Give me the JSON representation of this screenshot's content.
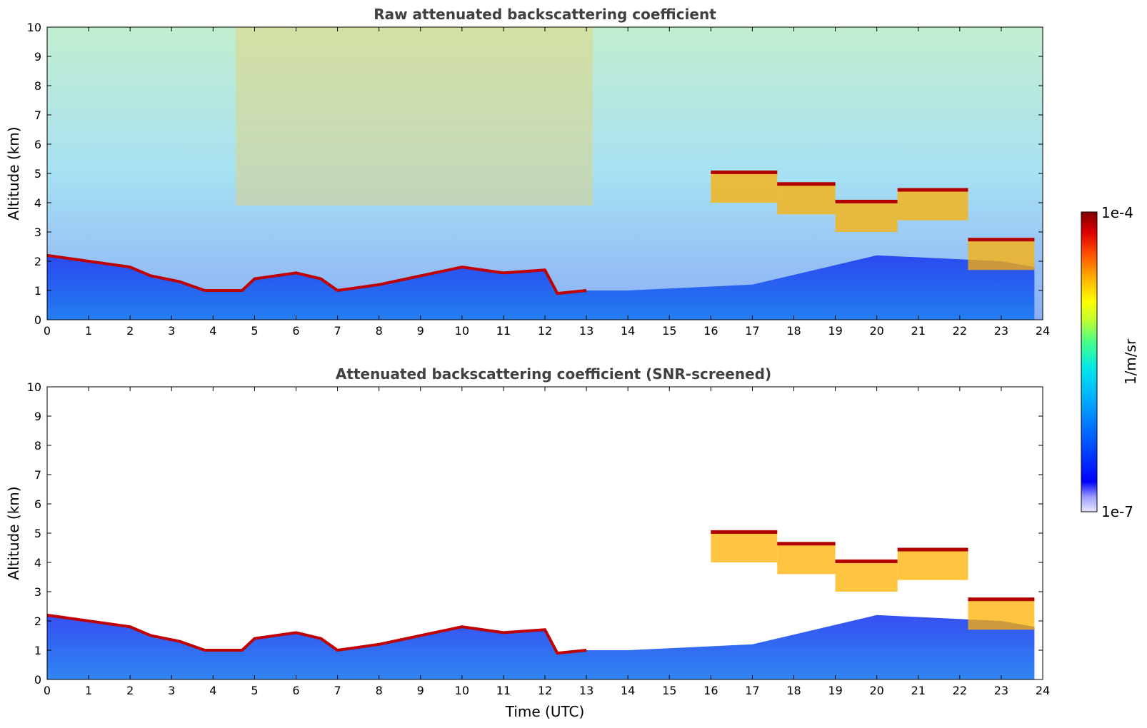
{
  "chart_data": [
    {
      "type": "heatmap",
      "title": "Raw attenuated backscattering coefficient",
      "xlabel": "",
      "ylabel": "Altitude (km)",
      "xlim": [
        0,
        24
      ],
      "ylim": [
        0,
        10
      ],
      "xticks": [
        0,
        1,
        2,
        3,
        4,
        5,
        6,
        7,
        8,
        9,
        10,
        11,
        12,
        13,
        14,
        15,
        16,
        17,
        18,
        19,
        20,
        21,
        22,
        23,
        24
      ],
      "yticks": [
        0,
        1,
        2,
        3,
        4,
        5,
        6,
        7,
        8,
        9,
        10
      ],
      "boundary_layer_top_km": [
        {
          "t": 0,
          "z": 2.2
        },
        {
          "t": 1,
          "z": 2.0
        },
        {
          "t": 2,
          "z": 1.8
        },
        {
          "t": 2.5,
          "z": 1.5
        },
        {
          "t": 3.2,
          "z": 1.3
        },
        {
          "t": 3.8,
          "z": 1.0
        },
        {
          "t": 4.7,
          "z": 1.0
        },
        {
          "t": 5.0,
          "z": 1.4
        },
        {
          "t": 6.0,
          "z": 1.6
        },
        {
          "t": 6.6,
          "z": 1.4
        },
        {
          "t": 7.0,
          "z": 1.0
        },
        {
          "t": 8.0,
          "z": 1.2
        },
        {
          "t": 9.0,
          "z": 1.5
        },
        {
          "t": 10.0,
          "z": 1.8
        },
        {
          "t": 11.0,
          "z": 1.6
        },
        {
          "t": 12.0,
          "z": 1.7
        },
        {
          "t": 12.3,
          "z": 0.9
        },
        {
          "t": 13.0,
          "z": 1.0
        }
      ],
      "cloud_layers_km": [
        {
          "t0": 16.0,
          "t1": 17.6,
          "z": 4.6
        },
        {
          "t0": 17.6,
          "t1": 19.0,
          "z": 4.2
        },
        {
          "t0": 19.0,
          "t1": 20.5,
          "z": 3.6
        },
        {
          "t0": 20.5,
          "t1": 22.2,
          "z": 4.0
        },
        {
          "t0": 22.2,
          "t1": 23.8,
          "z": 2.3
        }
      ]
    },
    {
      "type": "heatmap",
      "title": "Attenuated backscattering coefficient (SNR-screened)",
      "xlabel": "Time (UTC)",
      "ylabel": "Altitude (km)",
      "xlim": [
        0,
        24
      ],
      "ylim": [
        0,
        10
      ],
      "xticks": [
        0,
        1,
        2,
        3,
        4,
        5,
        6,
        7,
        8,
        9,
        10,
        11,
        12,
        13,
        14,
        15,
        16,
        17,
        18,
        19,
        20,
        21,
        22,
        23,
        24
      ],
      "yticks": [
        0,
        1,
        2,
        3,
        4,
        5,
        6,
        7,
        8,
        9,
        10
      ]
    }
  ],
  "colorbar": {
    "label": "1/m/sr",
    "max_label": "1e-4",
    "min_label": "1e-7",
    "scale": "log",
    "range": [
      1e-07,
      0.0001
    ],
    "colormap": [
      "#e8e8ff",
      "#9b9bff",
      "#0000ff",
      "#0060ff",
      "#00b0ff",
      "#00e8e8",
      "#40ff90",
      "#c0ff30",
      "#ffff00",
      "#ffb000",
      "#ff5000",
      "#e00000",
      "#800000"
    ]
  }
}
